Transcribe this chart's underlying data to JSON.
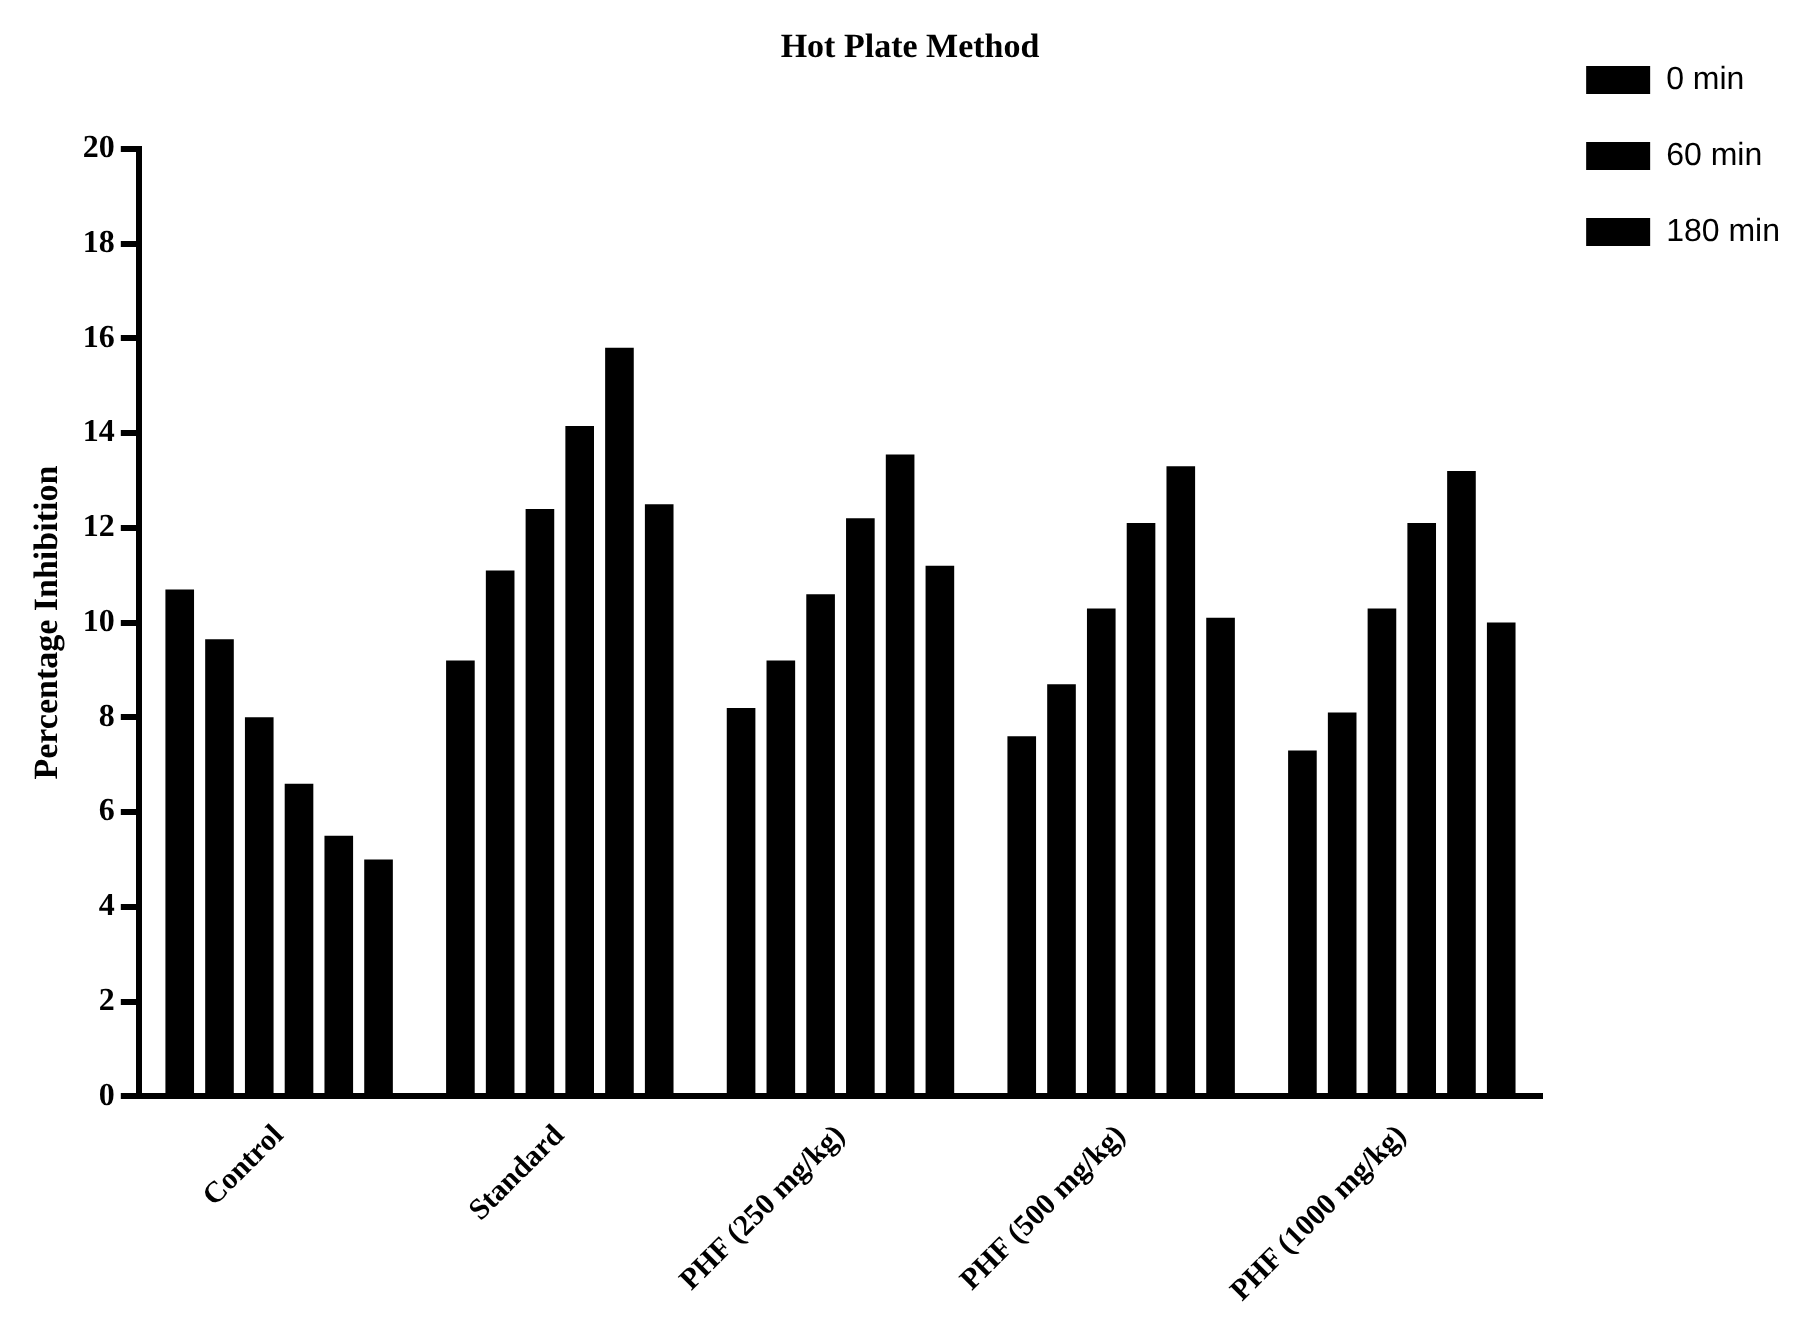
{
  "chart_data": {
    "type": "bar",
    "title": "Hot Plate Method",
    "ylabel": "Percentage Inhibition",
    "categories": [
      "Control",
      "Standard",
      "PHF (250 mg/kg)",
      "PHF (500 mg/kg)",
      "PHF (1000 mg/kg)"
    ],
    "series": [
      {
        "name": "0 min",
        "color": "#000000",
        "values": [
          10.7,
          9.2,
          8.2,
          7.6,
          7.3
        ]
      },
      {
        "color": "#000000",
        "values": [
          9.65,
          11.1,
          9.2,
          8.7,
          8.1
        ]
      },
      {
        "name": "60 min",
        "color": "#000000",
        "values": [
          8.0,
          12.4,
          10.6,
          10.3,
          10.3
        ]
      },
      {
        "color": "#000000",
        "values": [
          6.6,
          14.15,
          12.2,
          12.1,
          12.1
        ]
      },
      {
        "name": "180 min",
        "color": "#000000",
        "values": [
          5.5,
          15.8,
          13.55,
          13.3,
          13.2
        ]
      },
      {
        "color": "#000000",
        "values": [
          5.0,
          12.5,
          11.2,
          10.1,
          10.0
        ]
      }
    ],
    "ylim": [
      0,
      20
    ],
    "yticks": [
      0,
      2,
      4,
      6,
      8,
      10,
      12,
      14,
      16,
      18,
      20
    ],
    "grid": false,
    "legend": "top right"
  }
}
